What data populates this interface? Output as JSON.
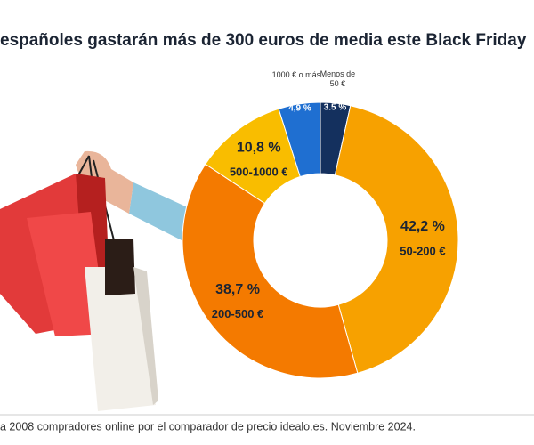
{
  "chart_data": {
    "type": "pie",
    "title": "españoles gastarán más de 300 euros de media este Black Friday",
    "note": "a 2008 compradores online por el comparador de precio idealo.es. Noviembre 2024.",
    "categories": [
      "Menos de 50 €",
      "50-200 €",
      "200-500 €",
      "500-1000 €",
      "1000 € o más"
    ],
    "values": [
      3.5,
      42.2,
      38.7,
      10.8,
      4.9
    ],
    "value_labels": [
      "3.5 %",
      "42,2 %",
      "38,7 %",
      "10,8 %",
      "4,9 %"
    ],
    "colors": [
      "#14305e",
      "#f7a100",
      "#f47a00",
      "#f9bd00",
      "#1f6fd1"
    ],
    "donut": true
  }
}
